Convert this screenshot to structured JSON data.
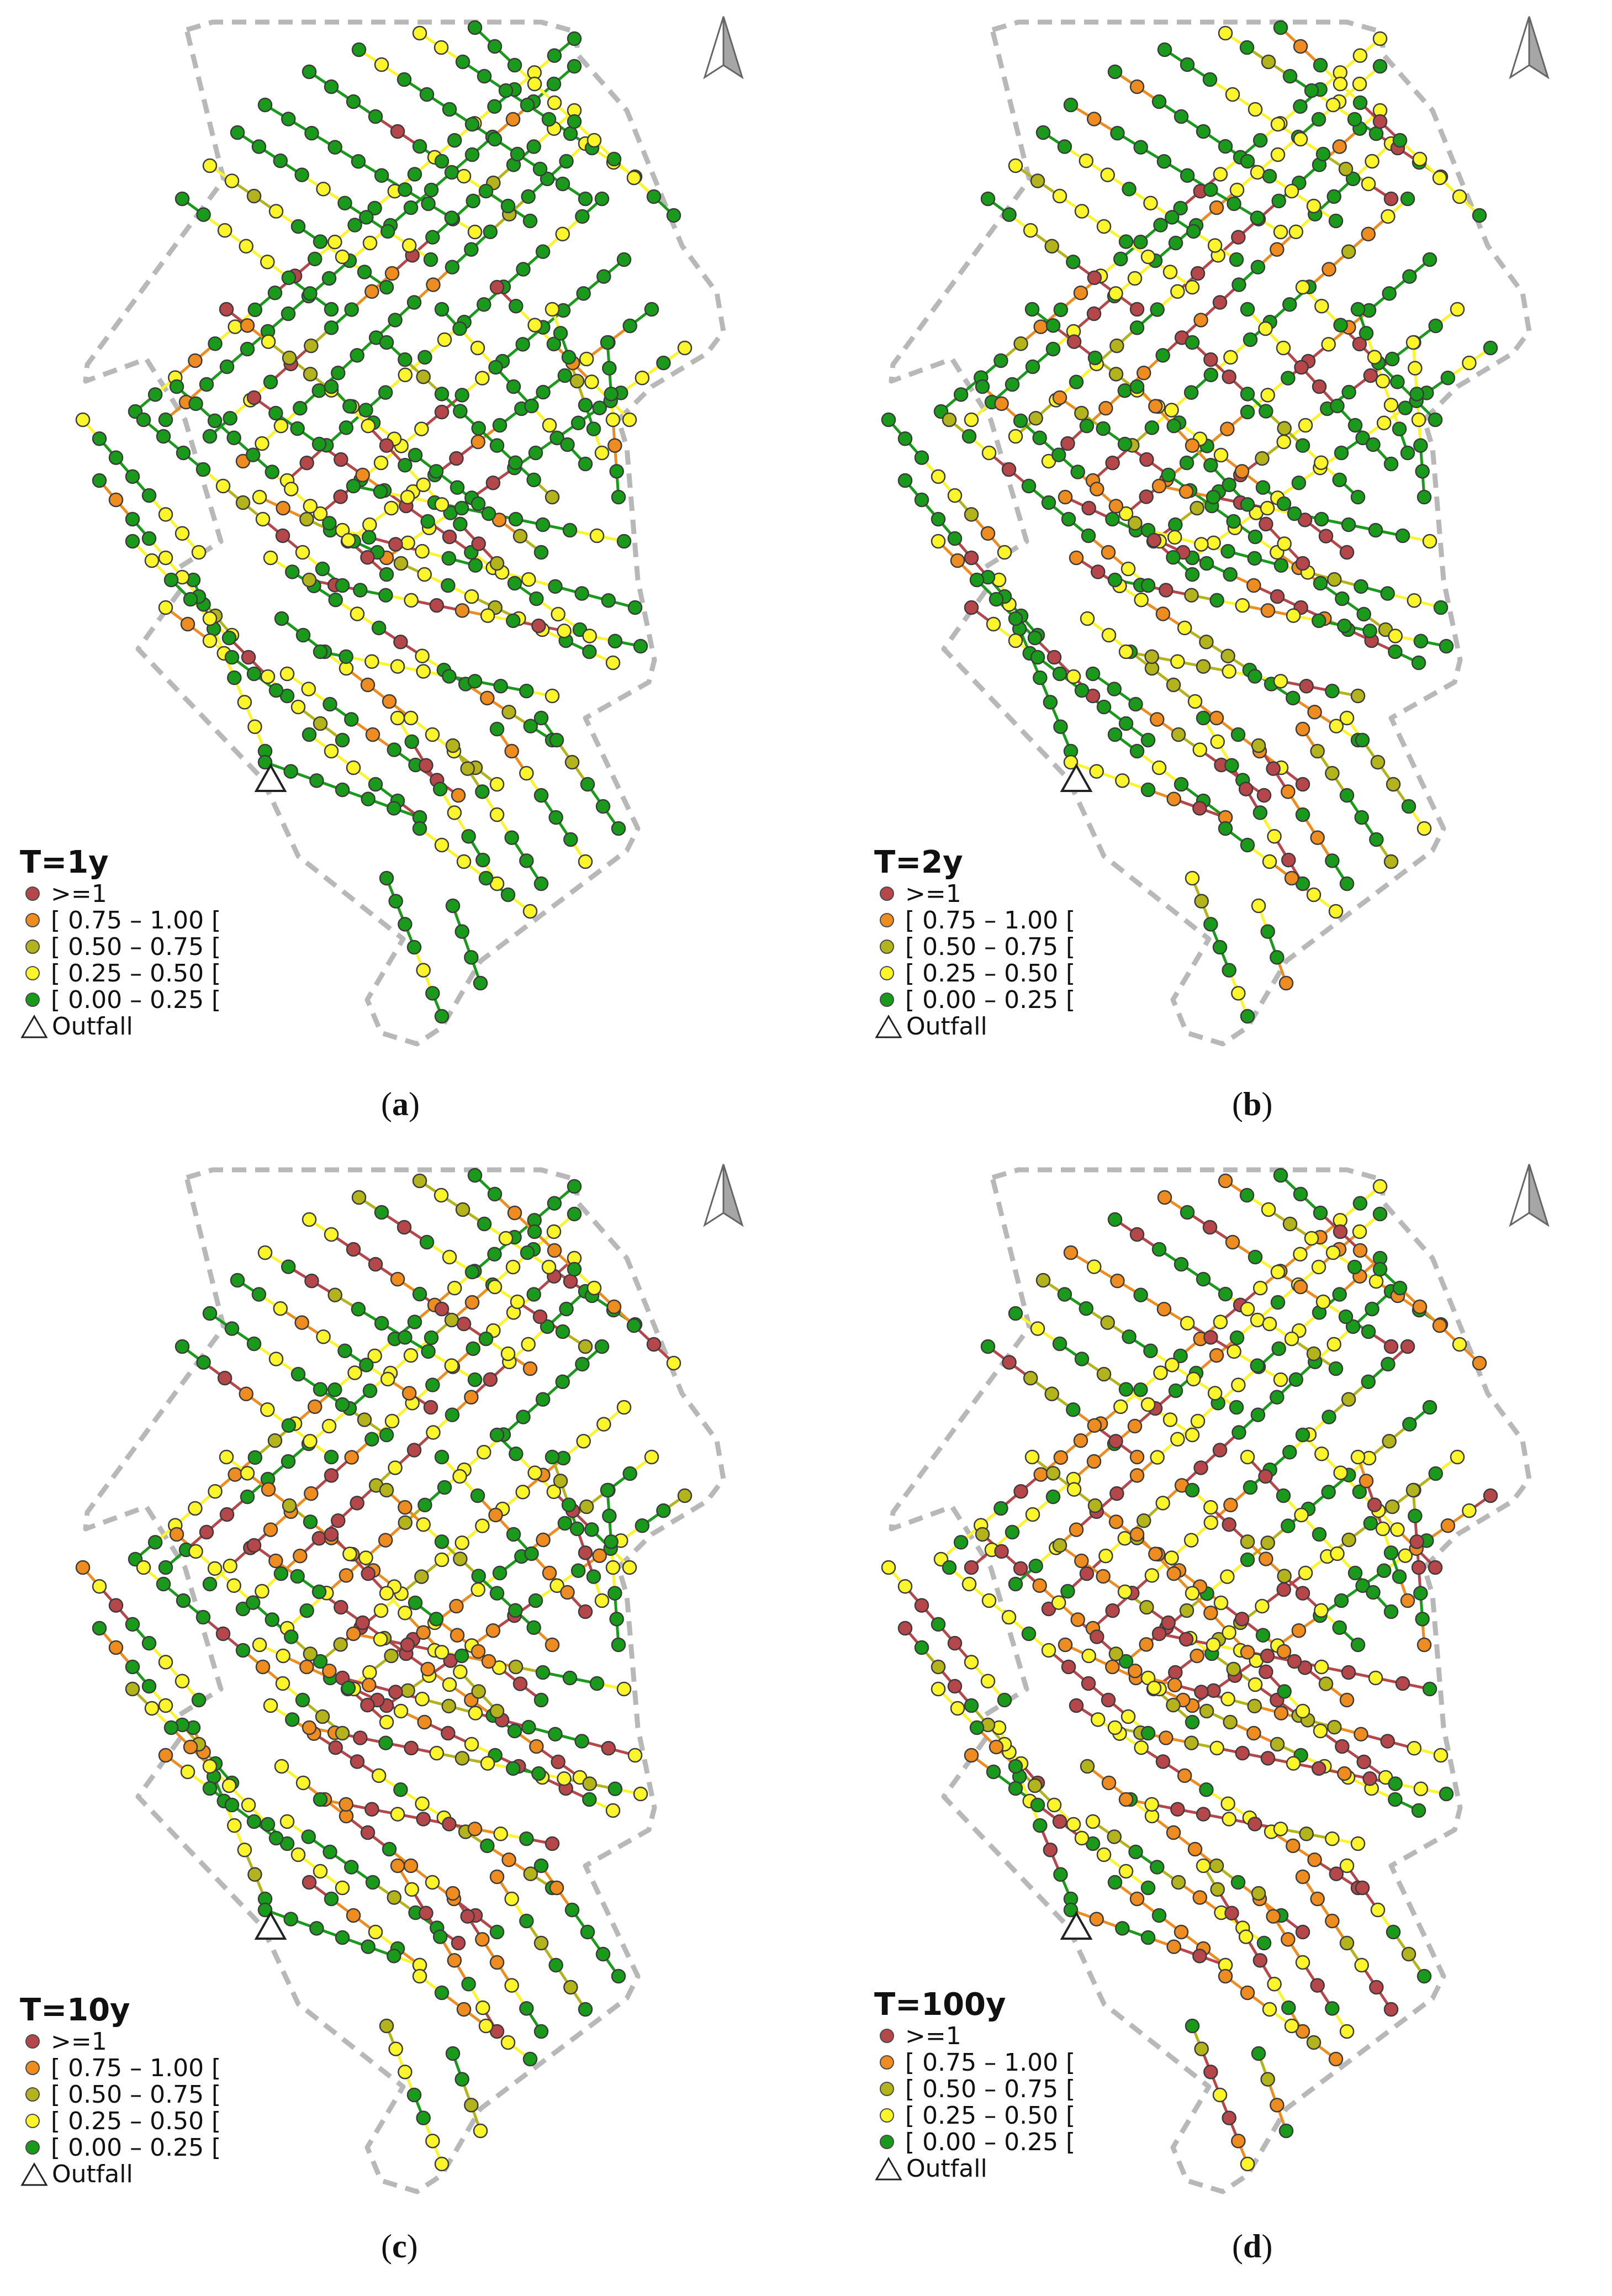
{
  "classes": [
    {
      "label": ">=1",
      "color": "#b5474b"
    },
    {
      "label": "[ 0.75 – 1.00 [",
      "color": "#ee8c1f"
    },
    {
      "label": "[ 0.50 – 0.75 [",
      "color": "#b3b31c"
    },
    {
      "label": "[ 0.25 – 0.50 [",
      "color": "#fbf52a"
    },
    {
      "label": "[ 0.00 – 0.25 [",
      "color": "#1a9a1a"
    }
  ],
  "outfall_label": "Outfall",
  "boundary_color": "#b8b8b8",
  "north_arrow_icon": "north-arrow-icon",
  "panels": [
    {
      "title": "T=1y",
      "caption_letter": "a",
      "level": 0
    },
    {
      "title": "T=2y",
      "caption_letter": "b",
      "level": 1
    },
    {
      "title": "T=10y",
      "caption_letter": "c",
      "level": 2
    },
    {
      "title": "T=100y",
      "caption_letter": "d",
      "level": 3
    }
  ]
}
